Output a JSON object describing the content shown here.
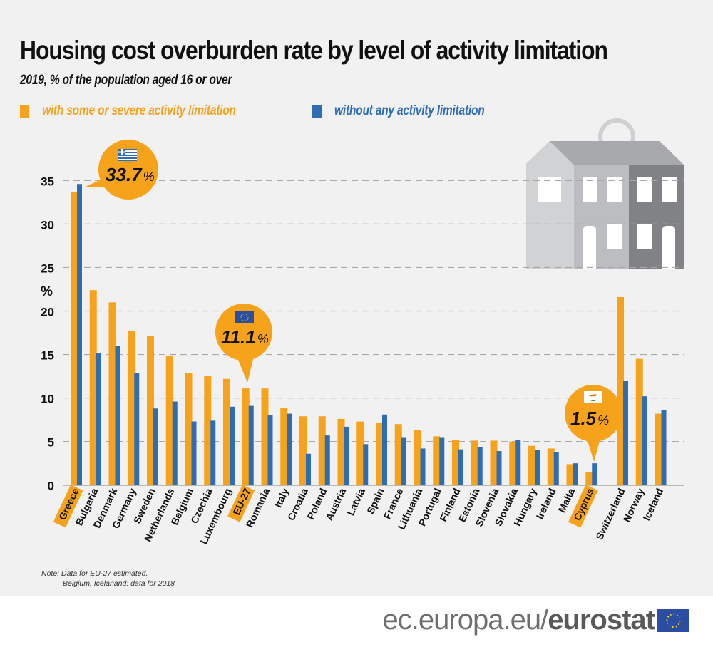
{
  "header": {
    "title": "Housing cost overburden rate by level of activity limitation",
    "subtitle": "2019, % of the population aged 16 or over"
  },
  "legend": [
    {
      "label": "with some or severe activity limitation",
      "color": "#f7a21b"
    },
    {
      "label": "without any activity limitation",
      "color": "#2e6db4"
    }
  ],
  "callouts": [
    {
      "country": "Greece",
      "value_label": "33.7",
      "unit": "%",
      "flag": "greece-flag"
    },
    {
      "country": "EU-27",
      "value_label": "11.1",
      "unit": "%",
      "flag": "eu-flag"
    },
    {
      "country": "Cyprus",
      "value_label": "1.5",
      "unit": "%",
      "flag": "cyprus-flag"
    }
  ],
  "chart_data": {
    "type": "bar",
    "title": "Housing cost overburden rate by level of activity limitation",
    "subtitle": "2019, % of the population aged 16 or over",
    "xlabel": "",
    "ylabel": "%",
    "ylim": [
      0,
      35
    ],
    "yticks": [
      0,
      5,
      10,
      15,
      20,
      25,
      30,
      35
    ],
    "grid": true,
    "legend_position": "top-left",
    "categories": [
      "Greece",
      "Bulgaria",
      "Denmark",
      "Germany",
      "Sweden",
      "Netherlands",
      "Belgium",
      "Czechia",
      "Luxembourg",
      "EU-27",
      "Romania",
      "Italy",
      "Croatia",
      "Poland",
      "Austria",
      "Latvia",
      "Spain",
      "France",
      "Lithuania",
      "Portugal",
      "Finland",
      "Estonia",
      "Slovenia",
      "Slovakia",
      "Hungary",
      "Ireland",
      "Malta",
      "Cyprus",
      "Switzerland",
      "Norway",
      "Iceland"
    ],
    "highlighted": [
      "Greece",
      "EU-27",
      "Cyprus"
    ],
    "series": [
      {
        "name": "with some or severe activity limitation",
        "color": "#f7a21b",
        "values": [
          33.7,
          22.4,
          21.0,
          17.7,
          17.1,
          14.8,
          12.9,
          12.5,
          12.2,
          11.1,
          11.1,
          8.9,
          7.9,
          7.9,
          7.6,
          7.3,
          7.1,
          7.0,
          6.3,
          5.6,
          5.2,
          5.1,
          5.1,
          5.0,
          4.5,
          4.2,
          2.4,
          1.5,
          21.6,
          14.5,
          8.2
        ]
      },
      {
        "name": "without any activity limitation",
        "color": "#2e6db4",
        "values": [
          34.6,
          15.2,
          16.0,
          12.9,
          8.8,
          9.6,
          7.3,
          7.4,
          9.0,
          9.1,
          8.0,
          8.2,
          3.6,
          5.7,
          6.7,
          4.7,
          8.1,
          5.5,
          4.2,
          5.5,
          4.1,
          4.4,
          3.9,
          5.2,
          4.0,
          3.8,
          2.5,
          2.5,
          12.0,
          10.2,
          8.6
        ]
      }
    ]
  },
  "note": {
    "line1": "Note:  Data for EU-27 estimated.",
    "line2": "Belgium, Icelanand: data for 2018"
  },
  "footer": {
    "url_prefix": "ec.europa.eu/",
    "brand": "eurostat"
  }
}
